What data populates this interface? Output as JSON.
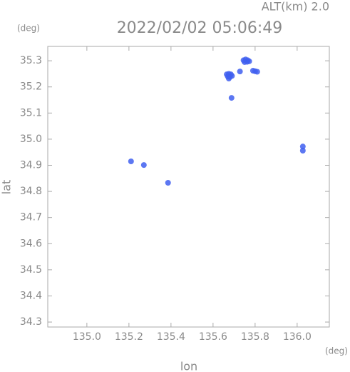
{
  "chart_data": {
    "type": "scatter",
    "title": "2022/02/02 05:06:49",
    "subtitle": "ALT(km) 2.0",
    "x_unit": "(deg)",
    "y_unit": "(deg)",
    "x_label": "lon",
    "y_label": "lat",
    "color": "#3f5ff0",
    "x": [
      135.665,
      135.675,
      135.685,
      135.67,
      135.68,
      135.69,
      135.675,
      135.745,
      135.755,
      135.765,
      135.75,
      135.762,
      135.772,
      135.728,
      135.79,
      135.8,
      135.81,
      135.688,
      135.21,
      135.271,
      135.386,
      136.027,
      136.027
    ],
    "y": [
      35.248,
      35.25,
      35.248,
      35.24,
      35.238,
      35.242,
      35.232,
      35.302,
      35.305,
      35.302,
      35.295,
      35.296,
      35.298,
      35.259,
      35.262,
      35.26,
      35.258,
      35.158,
      34.915,
      34.901,
      34.833,
      34.972,
      34.956
    ],
    "xlim": [
      134.814,
      136.153
    ],
    "ylim": [
      34.281,
      35.355
    ],
    "xticks": [
      {
        "value": 135.0,
        "label": "135.0"
      },
      135.2,
      135.4,
      135.6,
      135.8,
      {
        "value": 136.0,
        "label": "136.0"
      }
    ],
    "yticks": [
      34.3,
      34.4,
      34.5,
      34.6,
      34.7,
      34.8,
      34.9,
      {
        "value": 35.0,
        "label": "35.0"
      },
      35.1,
      35.2,
      35.3
    ]
  }
}
